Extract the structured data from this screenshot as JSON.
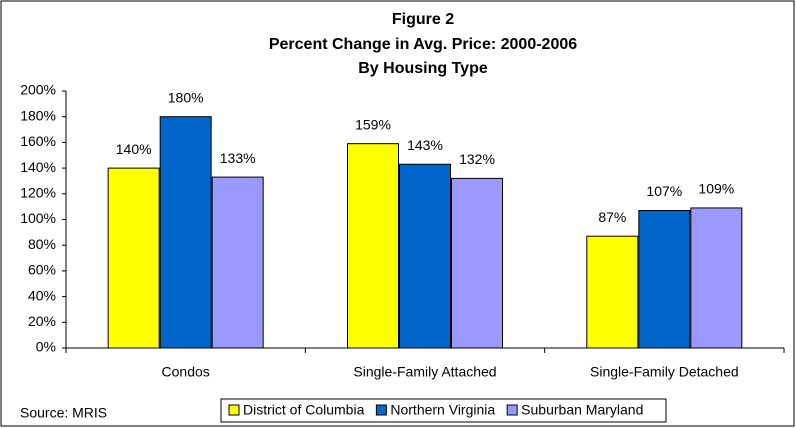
{
  "chart_data": {
    "type": "bar",
    "title": "Figure 2",
    "subtitle": [
      "Percent Change in Avg. Price: 2000-2006",
      "By Housing Type"
    ],
    "categories": [
      "Condos",
      "Single-Family Attached",
      "Single-Family Detached"
    ],
    "series": [
      {
        "name": "District of Columbia",
        "color": "#ffff00",
        "values": [
          140,
          159,
          87
        ],
        "value_labels": [
          "140%",
          "159%",
          "87%"
        ]
      },
      {
        "name": "Northern Virginia",
        "color": "#0066cc",
        "values": [
          180,
          143,
          107
        ],
        "value_labels": [
          "180%",
          "143%",
          "107%"
        ]
      },
      {
        "name": "Suburban Maryland",
        "color": "#9999ff",
        "values": [
          133,
          132,
          109
        ],
        "value_labels": [
          "133%",
          "132%",
          "109%"
        ]
      }
    ],
    "ylim": [
      0,
      200
    ],
    "yticks": [
      {
        "value": 0,
        "label": "0%"
      },
      {
        "value": 20,
        "label": "20%"
      },
      {
        "value": 40,
        "label": "40%"
      },
      {
        "value": 60,
        "label": "60%"
      },
      {
        "value": 80,
        "label": "80%"
      },
      {
        "value": 100,
        "label": "100%"
      },
      {
        "value": 120,
        "label": "120%"
      },
      {
        "value": 140,
        "label": "140%"
      },
      {
        "value": 160,
        "label": "160%"
      },
      {
        "value": 180,
        "label": "180%"
      },
      {
        "value": 200,
        "label": "200%"
      }
    ],
    "grid": false,
    "legend": "bottom",
    "source": "Source: MRIS"
  }
}
